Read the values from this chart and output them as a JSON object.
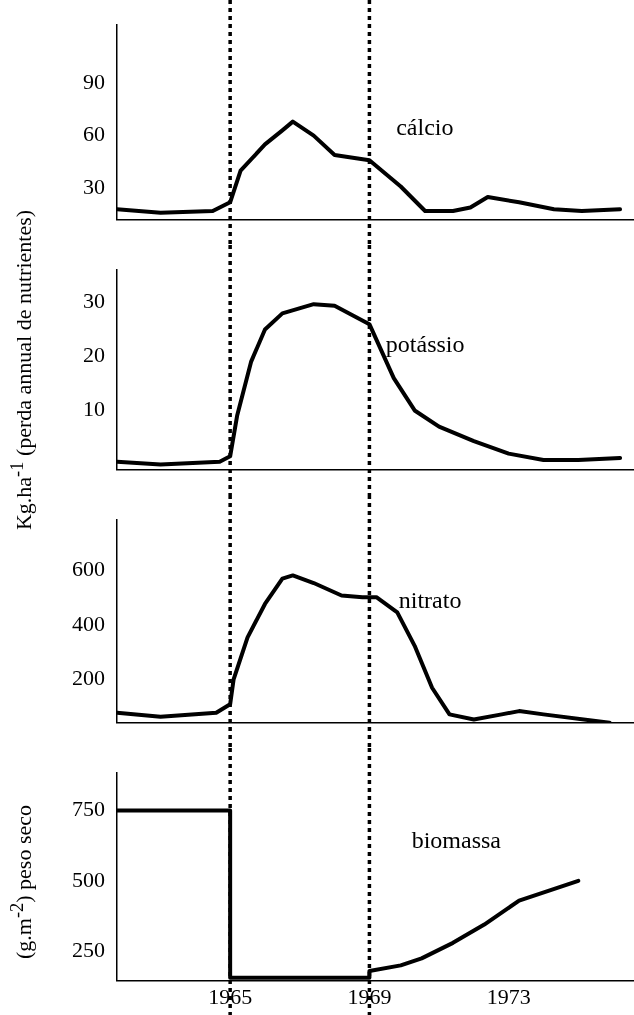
{
  "chart_data": [
    {
      "type": "line",
      "xlim": [
        1961.75,
        1976.6
      ],
      "xticks": [
        1965,
        1969,
        1973
      ],
      "ylim": [
        12,
        123
      ],
      "yticks": [
        30,
        60,
        90
      ],
      "tick_labels": "y",
      "grid": false,
      "legend": false,
      "marker": "none",
      "line_style": "solid",
      "x": [
        1961.75,
        1963,
        1964.5,
        1965,
        1965.3,
        1966,
        1966.5,
        1966.8,
        1967.4,
        1968,
        1969,
        1969.9,
        1970.6,
        1971.4,
        1971.9,
        1972.4,
        1973.3,
        1974.3,
        1975.1,
        1976.2
      ],
      "series": [
        {
          "color": "#000000",
          "values": [
            18,
            16,
            17,
            22,
            40,
            55,
            63,
            68,
            60,
            49,
            46,
            31,
            17,
            17,
            19,
            25,
            22,
            18,
            17,
            18
          ]
        }
      ],
      "ref_lines": [
        {
          "axis": "x",
          "value": 1965,
          "line_style": "dotted",
          "color": "#000000"
        },
        {
          "axis": "x",
          "value": 1969,
          "line_style": "dotted",
          "color": "#000000"
        }
      ],
      "annotations": [
        "cálcio"
      ]
    },
    {
      "type": "line",
      "xlim": [
        1961.75,
        1976.6
      ],
      "xticks": [
        1965,
        1969,
        1973
      ],
      "ylim": [
        -1,
        36
      ],
      "yticks": [
        10,
        20,
        30
      ],
      "tick_labels": "y",
      "grid": false,
      "legend": false,
      "marker": "none",
      "line_style": "solid",
      "ylabel": "Kg.ha$^{-1}$ (perda annual de nutrientes)",
      "x": [
        1961.75,
        1963,
        1964.7,
        1965,
        1965.2,
        1965.6,
        1966,
        1966.5,
        1967.4,
        1968,
        1969,
        1969.7,
        1970.3,
        1971,
        1972,
        1973,
        1974,
        1975,
        1976.2
      ],
      "series": [
        {
          "color": "#000000",
          "values": [
            0.5,
            0,
            0.5,
            1.5,
            9,
            19,
            25,
            28,
            29.7,
            29.4,
            26,
            16,
            10,
            7,
            4.3,
            2,
            0.8,
            0.8,
            1.2
          ]
        }
      ],
      "ref_lines": [
        {
          "axis": "x",
          "value": 1965,
          "line_style": "dotted",
          "color": "#000000"
        },
        {
          "axis": "x",
          "value": 1969,
          "line_style": "dotted",
          "color": "#000000"
        }
      ],
      "annotations": [
        "potássio"
      ]
    },
    {
      "type": "line",
      "xlim": [
        1961.75,
        1976.6
      ],
      "xticks": [
        1965,
        1969,
        1973
      ],
      "ylim": [
        40,
        785
      ],
      "yticks": [
        200,
        400,
        600
      ],
      "tick_labels": "y",
      "grid": false,
      "legend": false,
      "marker": "none",
      "line_style": "solid",
      "x": [
        1961.75,
        1963,
        1964.6,
        1965,
        1965.1,
        1965.5,
        1966,
        1966.5,
        1966.8,
        1967.4,
        1968.2,
        1968.8,
        1969.2,
        1969.8,
        1970.3,
        1970.8,
        1971.3,
        1972,
        1972.8,
        1973.3,
        1974,
        1975.9
      ],
      "series": [
        {
          "color": "#000000",
          "values": [
            77,
            62,
            77,
            108,
            200,
            354,
            477,
            570,
            582,
            554,
            508,
            502,
            502,
            446,
            323,
            169,
            71,
            52,
            71,
            83,
            71,
            40
          ]
        }
      ],
      "ref_lines": [
        {
          "axis": "x",
          "value": 1965,
          "line_style": "dotted",
          "color": "#000000"
        },
        {
          "axis": "x",
          "value": 1969,
          "line_style": "dotted",
          "color": "#000000"
        }
      ],
      "annotations": [
        "nitrato"
      ]
    },
    {
      "type": "line",
      "xlim": [
        1961.75,
        1976.6
      ],
      "xticks": [
        1965,
        1969,
        1973
      ],
      "ylim": [
        146,
        882
      ],
      "yticks": [
        250,
        500,
        750
      ],
      "grid": false,
      "legend": false,
      "marker": "none",
      "line_style": "solid",
      "ylabel": "(g.m$^{-2}$) peso seco",
      "x": [
        1961.75,
        1965,
        1965,
        1969,
        1969,
        1969.9,
        1970.5,
        1971.4,
        1972.3,
        1973.3,
        1975
      ],
      "series": [
        {
          "color": "#000000",
          "values": [
            750,
            750,
            156,
            156,
            180,
            200,
            225,
            280,
            345,
            430,
            500
          ]
        }
      ],
      "ref_lines": [
        {
          "axis": "x",
          "value": 1965,
          "line_style": "dotted",
          "color": "#000000"
        },
        {
          "axis": "x",
          "value": 1969,
          "line_style": "dotted",
          "color": "#000000"
        }
      ],
      "annotations": [
        "biomassa"
      ]
    }
  ]
}
